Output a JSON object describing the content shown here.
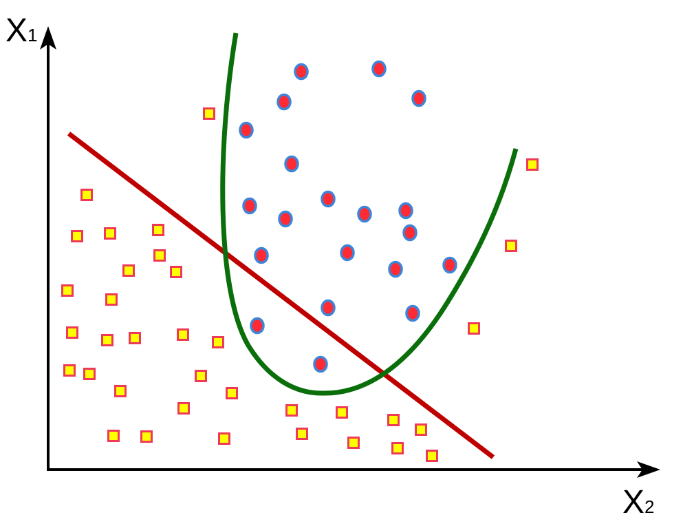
{
  "axes": {
    "y_label": {
      "letter": "X",
      "subscript": "1"
    },
    "x_label": {
      "letter": "X",
      "subscript": "2"
    }
  },
  "colors": {
    "axis": "#000000",
    "linear_boundary": "#bf0000",
    "nonlinear_boundary": "#0a6e0a",
    "circle_fill": "#ff2a33",
    "circle_stroke": "#3d85d8",
    "square_fill": "#ffff00",
    "square_stroke": "#ef3a57"
  },
  "icons": {
    "circle_marker": "circle-marker-icon",
    "square_marker": "square-marker-icon"
  }
}
